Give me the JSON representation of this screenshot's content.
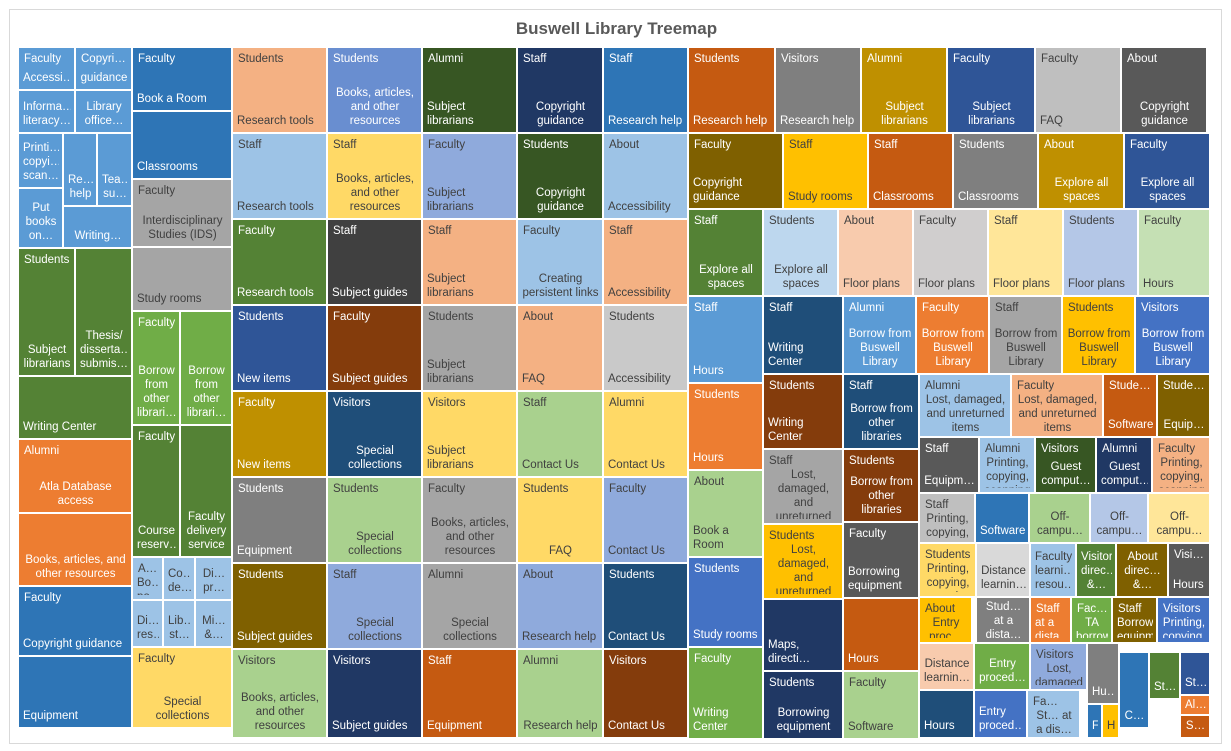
{
  "chart_data": {
    "type": "treemap",
    "title": "Buswell Library Treemap",
    "series": [
      {
        "group": "Faculty",
        "label": "Accessi…",
        "value": 1,
        "color": "#5b9bd5"
      },
      {
        "group": "Copyrig…",
        "label": "guidance",
        "value": 1,
        "color": "#5b9bd5"
      },
      {
        "group": "",
        "label": "Informa… literacy…",
        "value": 1,
        "color": "#5b9bd5"
      },
      {
        "group": "",
        "label": "Library office…",
        "value": 1,
        "color": "#5b9bd5"
      },
      {
        "group": "",
        "label": "Printi… copyi… scan…",
        "value": 1,
        "color": "#5b9bd5"
      },
      {
        "group": "",
        "label": "Re… help",
        "value": 1,
        "color": "#5b9bd5"
      },
      {
        "group": "",
        "label": "Tea… su…",
        "value": 1,
        "color": "#5b9bd5"
      },
      {
        "group": "",
        "label": "Put books on…",
        "value": 1,
        "color": "#5b9bd5"
      },
      {
        "group": "",
        "label": "Writing…",
        "value": 1,
        "color": "#5b9bd5"
      },
      {
        "group": "Students",
        "label": "Subject librarians",
        "value": 2,
        "color": "#548235"
      },
      {
        "group": "",
        "label": "Thesis/ disserta… submis…",
        "value": 2,
        "color": "#548235"
      },
      {
        "group": "",
        "label": "Writing Center",
        "value": 2,
        "color": "#548235"
      },
      {
        "group": "Alumni",
        "label": "Atla Database access",
        "value": 2,
        "color": "#ed7d31"
      },
      {
        "group": "",
        "label": "Books, articles, and other resources",
        "value": 2,
        "color": "#ed7d31"
      },
      {
        "group": "Faculty",
        "label": "Copyright guidance",
        "value": 2,
        "color": "#2e75b6"
      },
      {
        "group": "",
        "label": "Equipment",
        "value": 2,
        "color": "#2e75b6"
      },
      {
        "group": "Faculty",
        "label": "Book a Room",
        "value": 2,
        "color": "#2e75b6"
      },
      {
        "group": "",
        "label": "Classrooms",
        "value": 2,
        "color": "#2e75b6"
      },
      {
        "group": "Faculty",
        "label": "Interdisciplinary Studies (IDS)",
        "value": 2,
        "color": "#a5a5a5"
      },
      {
        "group": "",
        "label": "Study rooms",
        "value": 2,
        "color": "#a5a5a5"
      },
      {
        "group": "Faculty",
        "label": "Borrow from other librari…",
        "value": 1,
        "color": "#70ad47"
      },
      {
        "group": "",
        "label": "Borrow from other librari…",
        "value": 1,
        "color": "#70ad47"
      },
      {
        "group": "Faculty",
        "label": "Course reserv…",
        "value": 1,
        "color": "#548235"
      },
      {
        "group": "",
        "label": "Faculty delivery service",
        "value": 1,
        "color": "#548235"
      },
      {
        "group": "About",
        "label": "Bo… po…",
        "value": 1,
        "color": "#9dc3e6"
      },
      {
        "group": "",
        "label": "Co… de…",
        "value": 1,
        "color": "#9dc3e6"
      },
      {
        "group": "",
        "label": "Di… pr…",
        "value": 1,
        "color": "#9dc3e6"
      },
      {
        "group": "",
        "label": "Di… res…",
        "value": 1,
        "color": "#9dc3e6"
      },
      {
        "group": "",
        "label": "Lib… st…",
        "value": 1,
        "color": "#9dc3e6"
      },
      {
        "group": "",
        "label": "Mi… &…",
        "value": 1,
        "color": "#9dc3e6"
      },
      {
        "group": "Faculty",
        "label": "Special collections",
        "value": 2,
        "color": "#ffd966"
      },
      {
        "group": "Students",
        "label": "Research tools",
        "value": 2,
        "color": "#f4b183"
      },
      {
        "group": "Students",
        "label": "Books, articles, and other resources",
        "value": 2,
        "color": "#698ed0"
      },
      {
        "group": "Alumni",
        "label": "Subject librarians",
        "value": 2,
        "color": "#375623"
      },
      {
        "group": "Staff",
        "label": "Copyright guidance",
        "value": 2,
        "color": "#203864"
      },
      {
        "group": "Staff",
        "label": "Research help",
        "value": 2,
        "color": "#2e75b6"
      },
      {
        "group": "Students",
        "label": "Research help",
        "value": 2,
        "color": "#c55a11"
      },
      {
        "group": "Visitors",
        "label": "Research help",
        "value": 2,
        "color": "#7f7f7f"
      },
      {
        "group": "Alumni",
        "label": "Subject librarians",
        "value": 2,
        "color": "#bf9000"
      },
      {
        "group": "Faculty",
        "label": "Subject librarians",
        "value": 2,
        "color": "#2f5597"
      },
      {
        "group": "Faculty",
        "label": "FAQ",
        "value": 2,
        "color": "#bfbfbf"
      },
      {
        "group": "About",
        "label": "Copyright guidance",
        "value": 2,
        "color": "#595959"
      },
      {
        "group": "Staff",
        "label": "Research tools",
        "value": 2,
        "color": "#9dc3e6"
      },
      {
        "group": "Staff",
        "label": "Books, articles, and other resources",
        "value": 2,
        "color": "#ffd966"
      },
      {
        "group": "Faculty",
        "label": "Subject librarians",
        "value": 2,
        "color": "#8faadc"
      },
      {
        "group": "Students",
        "label": "Copyright guidance",
        "value": 2,
        "color": "#375623"
      },
      {
        "group": "About",
        "label": "Accessibility",
        "value": 2,
        "color": "#9dc3e6"
      },
      {
        "group": "Faculty",
        "label": "Copyright guidance",
        "value": 2,
        "color": "#7f6000"
      },
      {
        "group": "Staff",
        "label": "Study rooms",
        "value": 2,
        "color": "#ffc000"
      },
      {
        "group": "Staff",
        "label": "Classrooms",
        "value": 2,
        "color": "#c55a11"
      },
      {
        "group": "Students",
        "label": "Classrooms",
        "value": 2,
        "color": "#7f7f7f"
      },
      {
        "group": "About",
        "label": "Explore all spaces",
        "value": 2,
        "color": "#bf9000"
      },
      {
        "group": "Faculty",
        "label": "Explore all spaces",
        "value": 2,
        "color": "#2f5597"
      },
      {
        "group": "Faculty",
        "label": "Research tools",
        "value": 2,
        "color": "#548235"
      },
      {
        "group": "Staff",
        "label": "Subject guides",
        "value": 2,
        "color": "#404040"
      },
      {
        "group": "Staff",
        "label": "Subject librarians",
        "value": 2,
        "color": "#f4b183"
      },
      {
        "group": "Faculty",
        "label": "Creating persistent links",
        "value": 2,
        "color": "#9dc3e6"
      },
      {
        "group": "Staff",
        "label": "Accessibility",
        "value": 2,
        "color": "#f4b183"
      },
      {
        "group": "Staff",
        "label": "Explore all spaces",
        "value": 2,
        "color": "#548235"
      },
      {
        "group": "Students",
        "label": "Explore all spaces",
        "value": 2,
        "color": "#bdd7ee"
      },
      {
        "group": "About",
        "label": "Floor plans",
        "value": 2,
        "color": "#f8cbad"
      },
      {
        "group": "Faculty",
        "label": "Floor plans",
        "value": 2,
        "color": "#d0cece"
      },
      {
        "group": "Staff",
        "label": "Floor plans",
        "value": 2,
        "color": "#ffe699"
      },
      {
        "group": "Students",
        "label": "Floor plans",
        "value": 2,
        "color": "#b4c7e7"
      },
      {
        "group": "Faculty",
        "label": "Hours",
        "value": 2,
        "color": "#c5e0b4"
      },
      {
        "group": "Students",
        "label": "New items",
        "value": 2,
        "color": "#2f5597"
      },
      {
        "group": "Faculty",
        "label": "Subject guides",
        "value": 2,
        "color": "#843c0c"
      },
      {
        "group": "Students",
        "label": "Subject librarians",
        "value": 2,
        "color": "#a5a5a5"
      },
      {
        "group": "About",
        "label": "FAQ",
        "value": 2,
        "color": "#f4b183"
      },
      {
        "group": "Students",
        "label": "Accessibility",
        "value": 2,
        "color": "#c9c9c9"
      },
      {
        "group": "Staff",
        "label": "Hours",
        "value": 2,
        "color": "#5b9bd5"
      },
      {
        "group": "Staff",
        "label": "Writing Center",
        "value": 2,
        "color": "#1f4e79"
      },
      {
        "group": "Alumni",
        "label": "Borrow from Buswell Library",
        "value": 2,
        "color": "#5b9bd5"
      },
      {
        "group": "Faculty",
        "label": "Borrow from Buswell Library",
        "value": 2,
        "color": "#ed7d31"
      },
      {
        "group": "Staff",
        "label": "Borrow from Buswell Library",
        "value": 2,
        "color": "#a5a5a5"
      },
      {
        "group": "Students",
        "label": "Borrow from Buswell Library",
        "value": 2,
        "color": "#ffc000"
      },
      {
        "group": "Visitors",
        "label": "Borrow from Buswell Library",
        "value": 2,
        "color": "#4472c4"
      },
      {
        "group": "Faculty",
        "label": "New items",
        "value": 2,
        "color": "#bf9000"
      },
      {
        "group": "Visitors",
        "label": "Special collections",
        "value": 2,
        "color": "#1f4e79"
      },
      {
        "group": "Visitors",
        "label": "Subject librarians",
        "value": 2,
        "color": "#ffd966"
      },
      {
        "group": "Staff",
        "label": "Contact Us",
        "value": 2,
        "color": "#a9d18e"
      },
      {
        "group": "Alumni",
        "label": "Contact Us",
        "value": 2,
        "color": "#ffd966"
      },
      {
        "group": "Students",
        "label": "Hours",
        "value": 2,
        "color": "#ed7d31"
      },
      {
        "group": "Students",
        "label": "Writing Center",
        "value": 2,
        "color": "#843c0c"
      },
      {
        "group": "Staff",
        "label": "Borrow from other libraries",
        "value": 2,
        "color": "#1f4e79"
      },
      {
        "group": "Alumni",
        "label": "Lost, damaged, and unreturned items",
        "value": 2,
        "color": "#9dc3e6"
      },
      {
        "group": "Faculty",
        "label": "Lost, damaged, and unreturned items",
        "value": 2,
        "color": "#f4b183"
      },
      {
        "group": "Students",
        "label": "Software",
        "value": 1,
        "color": "#c55a11"
      },
      {
        "group": "Students",
        "label": "Equip…",
        "value": 1,
        "color": "#7f6000"
      },
      {
        "group": "Students",
        "label": "Equipment",
        "value": 2,
        "color": "#7f7f7f"
      },
      {
        "group": "Students",
        "label": "Special collections",
        "value": 2,
        "color": "#a9d18e"
      },
      {
        "group": "Faculty",
        "label": "Books, articles, and other resources",
        "value": 2,
        "color": "#a5a5a5"
      },
      {
        "group": "Students",
        "label": "FAQ",
        "value": 2,
        "color": "#ffd966"
      },
      {
        "group": "Faculty",
        "label": "Contact Us",
        "value": 2,
        "color": "#8faadc"
      },
      {
        "group": "About",
        "label": "Book a Room",
        "value": 2,
        "color": "#a9d18e"
      },
      {
        "group": "Staff",
        "label": "Lost, damaged, and unreturned items",
        "value": 2,
        "color": "#a5a5a5"
      },
      {
        "group": "Students",
        "label": "Borrow from other libraries",
        "value": 2,
        "color": "#843c0c"
      },
      {
        "group": "Staff",
        "label": "Equipm…",
        "value": 1,
        "color": "#595959"
      },
      {
        "group": "Alumni",
        "label": "Printing, copying, scanning",
        "value": 1,
        "color": "#9dc3e6"
      },
      {
        "group": "Visitors",
        "label": "Guest comput…",
        "value": 1,
        "color": "#375623"
      },
      {
        "group": "Alumni",
        "label": "Guest comput…",
        "value": 1,
        "color": "#203864"
      },
      {
        "group": "Faculty",
        "label": "Printing, copying, scanning",
        "value": 1,
        "color": "#f4b183"
      },
      {
        "group": "Staff",
        "label": "Printing, copying, scanning",
        "value": 1,
        "color": "#bfbfbf"
      },
      {
        "group": "",
        "label": "Software",
        "value": 1,
        "color": "#2e75b6"
      },
      {
        "group": "",
        "label": "Off-campu…",
        "value": 1,
        "color": "#a9d18e"
      },
      {
        "group": "",
        "label": "Off-campu…",
        "value": 1,
        "color": "#b4c7e7"
      },
      {
        "group": "",
        "label": "Off-campu…",
        "value": 1,
        "color": "#ffe699"
      },
      {
        "group": "Students",
        "label": "Subject guides",
        "value": 2,
        "color": "#7f6000"
      },
      {
        "group": "Staff",
        "label": "Special collections",
        "value": 2,
        "color": "#8faadc"
      },
      {
        "group": "Alumni",
        "label": "Special collections",
        "value": 2,
        "color": "#a5a5a5"
      },
      {
        "group": "About",
        "label": "Research help",
        "value": 2,
        "color": "#8faadc"
      },
      {
        "group": "Students",
        "label": "Contact Us",
        "value": 2,
        "color": "#1f4e79"
      },
      {
        "group": "Students",
        "label": "Study rooms",
        "value": 2,
        "color": "#4472c4"
      },
      {
        "group": "Students",
        "label": "Lost, damaged, and unreturned items",
        "value": 2,
        "color": "#ffc000"
      },
      {
        "group": "Faculty",
        "label": "Borrowing equipment",
        "value": 2,
        "color": "#595959"
      },
      {
        "group": "Students",
        "label": "Printing, copying, scanning",
        "value": 1,
        "color": "#ffd966"
      },
      {
        "group": "",
        "label": "Distance learnin…",
        "value": 1,
        "color": "#d9d9d9"
      },
      {
        "group": "",
        "label": "Faculty learni… resou…",
        "value": 1,
        "color": "#9dc3e6"
      },
      {
        "group": "",
        "label": "Visitors direc… &…",
        "value": 1,
        "color": "#548235"
      },
      {
        "group": "",
        "label": "About direc… &…",
        "value": 1,
        "color": "#7f6000"
      },
      {
        "group": "Visitors",
        "label": "Hours",
        "value": 1,
        "color": "#595959"
      },
      {
        "group": "",
        "label": "Maps, directi…",
        "value": 1,
        "color": "#203864"
      },
      {
        "group": "",
        "label": "Hours",
        "value": 1,
        "color": "#c55a11"
      },
      {
        "group": "About",
        "label": "Entry proc…",
        "value": 1,
        "color": "#ffc000"
      },
      {
        "group": "",
        "label": "Stud… at a dista…",
        "value": 1,
        "color": "#7f7f7f"
      },
      {
        "group": "Staff",
        "label": "at a dista…",
        "value": 1,
        "color": "#ed7d31"
      },
      {
        "group": "Faculty",
        "label": "TA borrowing",
        "value": 2,
        "color": "#70ad47"
      },
      {
        "group": "Staff",
        "label": "Borrowing equipment",
        "value": 2,
        "color": "#7f6000"
      },
      {
        "group": "Visitors",
        "label": "Printing, copying, scanning",
        "value": 1,
        "color": "#4472c4"
      },
      {
        "group": "",
        "label": "Distance learnin…",
        "value": 1,
        "color": "#f8cbad"
      },
      {
        "group": "",
        "label": "Entry proced…",
        "value": 1,
        "color": "#70ad47"
      },
      {
        "group": "Visitors",
        "label": "Lost, damaged, and unreturned items",
        "value": 2,
        "color": "#8faadc"
      },
      {
        "group": "Students",
        "label": "Borrowing equipment",
        "value": 2,
        "color": "#203864"
      },
      {
        "group": "Faculty",
        "label": "Software",
        "value": 1,
        "color": "#a9d18e"
      },
      {
        "group": "",
        "label": "Hours",
        "value": 1,
        "color": "#1f4e79"
      },
      {
        "group": "",
        "label": "Entry proced…",
        "value": 1,
        "color": "#4472c4"
      },
      {
        "group": "Fa…",
        "label": "St… at a dis…",
        "value": 1,
        "color": "#9dc3e6"
      },
      {
        "group": "",
        "label": "Hu…",
        "value": 1,
        "color": "#7f7f7f"
      },
      {
        "group": "",
        "label": "C…",
        "value": 1,
        "color": "#2e75b6"
      },
      {
        "group": "",
        "label": "F…",
        "value": 1,
        "color": "#2e75b6"
      },
      {
        "group": "",
        "label": "H…",
        "value": 1,
        "color": "#ffc000"
      },
      {
        "group": "",
        "label": "St…",
        "value": 1,
        "color": "#548235"
      },
      {
        "group": "",
        "label": "St…",
        "value": 1,
        "color": "#2f5597"
      },
      {
        "group": "",
        "label": "Al…",
        "value": 1,
        "color": "#ed7d31"
      },
      {
        "group": "",
        "label": "S…",
        "value": 1,
        "color": "#c55a11"
      },
      {
        "group": "Faculty",
        "label": "Writing Center",
        "value": 2,
        "color": "#70ad47"
      },
      {
        "group": "Visitors",
        "label": "Books, articles, and other resources",
        "value": 2,
        "color": "#a9d18e"
      },
      {
        "group": "Visitors",
        "label": "Subject guides",
        "value": 2,
        "color": "#203864"
      },
      {
        "group": "Staff",
        "label": "Equipment",
        "value": 2,
        "color": "#c55a11"
      },
      {
        "group": "Alumni",
        "label": "Research help",
        "value": 2,
        "color": "#a9d18e"
      },
      {
        "group": "Visitors",
        "label": "Contact Us",
        "value": 2,
        "color": "#843c0c"
      }
    ]
  }
}
